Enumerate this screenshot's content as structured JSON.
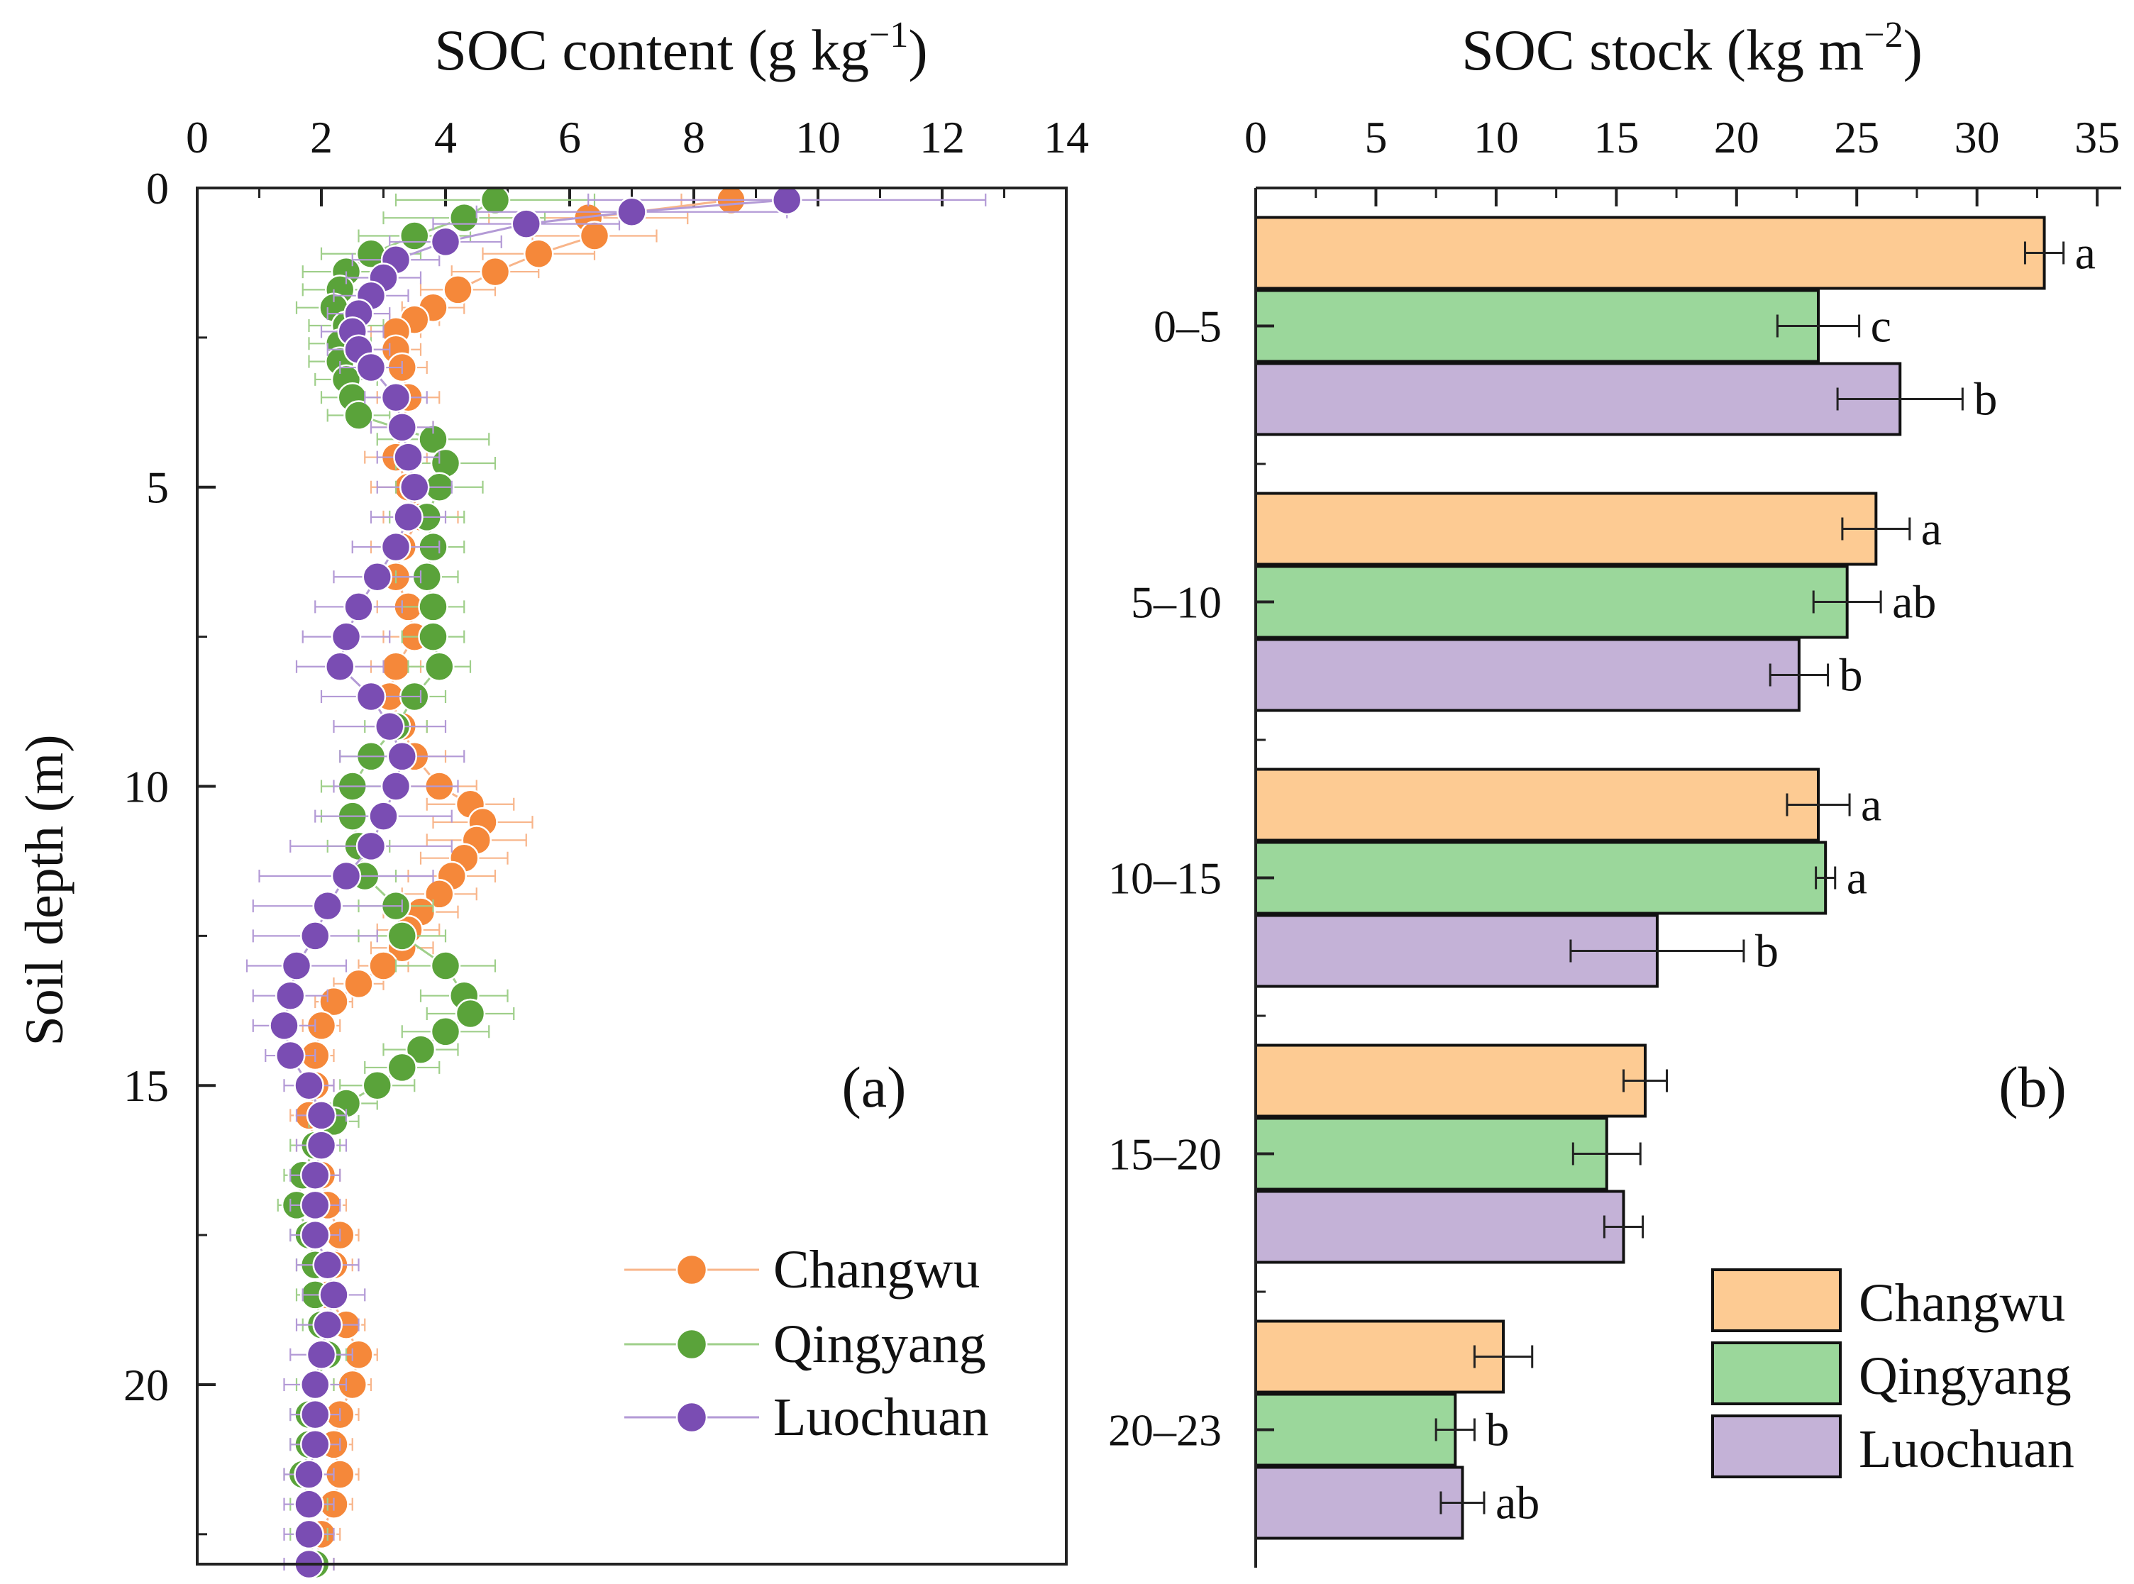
{
  "figure": {
    "panel_a": {
      "title_main": "SOC content (g kg",
      "title_sup": "−1",
      "title_close": ")",
      "ylabel": "Soil depth (m)",
      "sub_label": "(a)",
      "x_ticks": [
        "0",
        "2",
        "4",
        "6",
        "8",
        "10",
        "12",
        "14"
      ],
      "y_ticks": [
        "0",
        "5",
        "10",
        "15",
        "20"
      ]
    },
    "panel_b": {
      "title_main": "SOC stock (kg m",
      "title_sup": "−2",
      "title_close": ")",
      "sub_label": "(b)",
      "x_ticks": [
        "0",
        "5",
        "10",
        "15",
        "20",
        "25",
        "30",
        "35"
      ],
      "category_labels": [
        "0–5",
        "5–10",
        "10–15",
        "15–20",
        "20–23"
      ]
    },
    "legend_a": [
      "Changwu",
      "Qingyang",
      "Luochuan"
    ],
    "legend_b": [
      "Changwu",
      "Qingyang",
      "Luochuan"
    ]
  },
  "colors": {
    "Changwu_point": "#f5883a",
    "Qingyang_point": "#5aa33a",
    "Luochuan_point": "#7a4db3",
    "Changwu_bar": "#fdcb93",
    "Qingyang_bar": "#9bd79b",
    "Luochuan_bar": "#c4b2d7"
  },
  "chart_data": [
    {
      "type": "scatter",
      "title": "SOC content (g kg−1)",
      "xlabel": "SOC content (g kg−1)",
      "ylabel": "Soil depth (m)",
      "xlim": [
        0,
        14
      ],
      "ylim": [
        23,
        0
      ],
      "x_axis_position": "top",
      "y_inverted": true,
      "series": [
        {
          "name": "Changwu",
          "depth": [
            0.2,
            0.5,
            0.8,
            1.1,
            1.4,
            1.7,
            2.0,
            2.2,
            2.4,
            2.7,
            3.0,
            3.5,
            4.0,
            4.5,
            5.0,
            5.5,
            6.0,
            6.5,
            7.0,
            7.5,
            8.0,
            8.5,
            9.0,
            9.5,
            10.0,
            10.3,
            10.6,
            10.9,
            11.2,
            11.5,
            11.8,
            12.1,
            12.4,
            12.7,
            13.0,
            13.3,
            13.6,
            14.0,
            14.5,
            15.0,
            15.5,
            16.0,
            16.5,
            17.0,
            17.5,
            18.0,
            18.5,
            19.0,
            19.5,
            20.0,
            20.5,
            21.0,
            21.5,
            22.0,
            22.5,
            23.0
          ],
          "values": [
            8.6,
            6.3,
            6.4,
            5.5,
            4.8,
            4.2,
            3.8,
            3.5,
            3.2,
            3.2,
            3.3,
            3.4,
            3.3,
            3.2,
            3.4,
            3.6,
            3.3,
            3.2,
            3.4,
            3.5,
            3.2,
            3.1,
            3.3,
            3.5,
            3.9,
            4.4,
            4.6,
            4.5,
            4.3,
            4.1,
            3.9,
            3.6,
            3.4,
            3.3,
            3.0,
            2.6,
            2.2,
            2.0,
            1.9,
            1.9,
            1.8,
            1.9,
            2.0,
            2.1,
            2.3,
            2.2,
            2.1,
            2.4,
            2.6,
            2.5,
            2.3,
            2.2,
            2.3,
            2.2,
            2.0,
            1.9
          ],
          "xerr": [
            0.8,
            1.6,
            1.0,
            0.9,
            0.7,
            0.6,
            0.5,
            0.4,
            0.4,
            0.4,
            0.4,
            0.5,
            0.5,
            0.5,
            0.6,
            0.6,
            0.5,
            0.4,
            0.5,
            0.5,
            0.4,
            0.4,
            0.4,
            0.5,
            0.6,
            0.7,
            0.8,
            0.8,
            0.7,
            0.7,
            0.6,
            0.6,
            0.5,
            0.5,
            0.4,
            0.4,
            0.3,
            0.3,
            0.3,
            0.3,
            0.3,
            0.3,
            0.3,
            0.3,
            0.3,
            0.3,
            0.3,
            0.3,
            0.3,
            0.3,
            0.3,
            0.3,
            0.3,
            0.3,
            0.3,
            0.3
          ]
        },
        {
          "name": "Qingyang",
          "depth": [
            0.2,
            0.5,
            0.8,
            1.1,
            1.4,
            1.7,
            2.0,
            2.3,
            2.6,
            2.9,
            3.2,
            3.5,
            3.8,
            4.2,
            4.6,
            5.0,
            5.5,
            6.0,
            6.5,
            7.0,
            7.5,
            8.0,
            8.5,
            9.0,
            9.5,
            10.0,
            10.5,
            11.0,
            11.5,
            12.0,
            12.5,
            13.0,
            13.5,
            13.8,
            14.1,
            14.4,
            14.7,
            15.0,
            15.3,
            15.6,
            16.0,
            16.5,
            17.0,
            17.5,
            18.0,
            18.5,
            19.0,
            19.5,
            20.0,
            20.5,
            21.0,
            21.5,
            22.0,
            22.5,
            23.0
          ],
          "values": [
            4.8,
            4.3,
            3.5,
            2.8,
            2.4,
            2.3,
            2.2,
            2.4,
            2.3,
            2.3,
            2.4,
            2.5,
            2.6,
            3.8,
            4.0,
            3.9,
            3.7,
            3.8,
            3.7,
            3.8,
            3.8,
            3.9,
            3.5,
            3.2,
            2.8,
            2.5,
            2.5,
            2.6,
            2.7,
            3.2,
            3.3,
            4.0,
            4.3,
            4.4,
            4.0,
            3.6,
            3.3,
            2.9,
            2.4,
            2.2,
            1.9,
            1.7,
            1.6,
            1.8,
            1.9,
            1.9,
            2.0,
            2.1,
            1.9,
            1.8,
            1.8,
            1.7,
            1.8,
            1.8,
            1.9
          ],
          "xerr": [
            1.6,
            1.3,
            0.9,
            0.8,
            0.7,
            0.6,
            0.6,
            0.6,
            0.5,
            0.5,
            0.5,
            0.5,
            0.5,
            0.9,
            0.8,
            0.7,
            0.6,
            0.5,
            0.5,
            0.5,
            0.5,
            0.5,
            0.5,
            0.5,
            0.5,
            0.5,
            0.5,
            0.5,
            0.5,
            0.6,
            0.7,
            0.8,
            0.7,
            0.7,
            0.7,
            0.6,
            0.6,
            0.6,
            0.5,
            0.4,
            0.4,
            0.3,
            0.3,
            0.3,
            0.3,
            0.3,
            0.3,
            0.3,
            0.3,
            0.3,
            0.3,
            0.3,
            0.3,
            0.3,
            0.3
          ]
        },
        {
          "name": "Luochuan",
          "depth": [
            0.2,
            0.4,
            0.6,
            0.9,
            1.2,
            1.5,
            1.8,
            2.1,
            2.4,
            2.7,
            3.0,
            3.5,
            4.0,
            4.5,
            5.0,
            5.5,
            6.0,
            6.5,
            7.0,
            7.5,
            8.0,
            8.5,
            9.0,
            9.5,
            10.0,
            10.5,
            11.0,
            11.5,
            12.0,
            12.5,
            13.0,
            13.5,
            14.0,
            14.5,
            15.0,
            15.5,
            16.0,
            16.5,
            17.0,
            17.5,
            18.0,
            18.5,
            19.0,
            19.5,
            20.0,
            20.5,
            21.0,
            21.5,
            22.0,
            22.5,
            23.0
          ],
          "values": [
            9.5,
            7.0,
            5.3,
            4.0,
            3.2,
            3.0,
            2.8,
            2.6,
            2.5,
            2.6,
            2.8,
            3.2,
            3.3,
            3.4,
            3.5,
            3.4,
            3.2,
            2.9,
            2.6,
            2.4,
            2.3,
            2.8,
            3.1,
            3.3,
            3.2,
            3.0,
            2.8,
            2.4,
            2.1,
            1.9,
            1.6,
            1.5,
            1.4,
            1.5,
            1.8,
            2.0,
            2.0,
            1.9,
            1.9,
            1.9,
            2.1,
            2.2,
            2.1,
            2.0,
            1.9,
            1.9,
            1.9,
            1.8,
            1.8,
            1.8,
            1.8
          ],
          "xerr": [
            3.2,
            2.5,
            1.5,
            0.9,
            0.7,
            0.6,
            0.6,
            0.5,
            0.5,
            0.5,
            0.5,
            0.5,
            0.5,
            0.5,
            0.6,
            0.6,
            0.7,
            0.7,
            0.7,
            0.7,
            0.7,
            0.8,
            0.9,
            1.0,
            1.0,
            1.1,
            1.3,
            1.4,
            1.2,
            1.0,
            0.8,
            0.6,
            0.5,
            0.4,
            0.4,
            0.4,
            0.4,
            0.4,
            0.4,
            0.4,
            0.5,
            0.5,
            0.5,
            0.5,
            0.5,
            0.4,
            0.4,
            0.4,
            0.4,
            0.4,
            0.4
          ]
        }
      ],
      "legend": [
        "Changwu",
        "Qingyang",
        "Luochuan"
      ],
      "legend_position": "bottom-right"
    },
    {
      "type": "bar",
      "orientation": "horizontal",
      "title": "SOC stock (kg m−2)",
      "xlabel": "SOC stock (kg m−2)",
      "ylabel": "Soil depth (m)",
      "xlim": [
        0,
        36
      ],
      "x_axis_position": "top",
      "categories": [
        "0–5",
        "5–10",
        "10–15",
        "15–20",
        "20–23"
      ],
      "series": [
        {
          "name": "Changwu",
          "values": [
            32.8,
            25.8,
            23.4,
            16.2,
            10.3
          ],
          "errors": [
            0.8,
            1.4,
            1.3,
            0.9,
            1.2
          ],
          "letters": [
            "a",
            "a",
            "a",
            "",
            ""
          ]
        },
        {
          "name": "Qingyang",
          "values": [
            23.4,
            24.6,
            23.7,
            14.6,
            8.3
          ],
          "errors": [
            1.7,
            1.4,
            0.4,
            1.4,
            0.8
          ],
          "letters": [
            "c",
            "ab",
            "a",
            "",
            "b"
          ]
        },
        {
          "name": "Luochuan",
          "values": [
            26.8,
            22.6,
            16.7,
            15.3,
            8.6
          ],
          "errors": [
            2.6,
            1.2,
            3.6,
            0.8,
            0.9
          ],
          "letters": [
            "b",
            "b",
            "b",
            "",
            "ab"
          ]
        }
      ],
      "legend": [
        "Changwu",
        "Qingyang",
        "Luochuan"
      ],
      "legend_position": "bottom-right"
    }
  ]
}
